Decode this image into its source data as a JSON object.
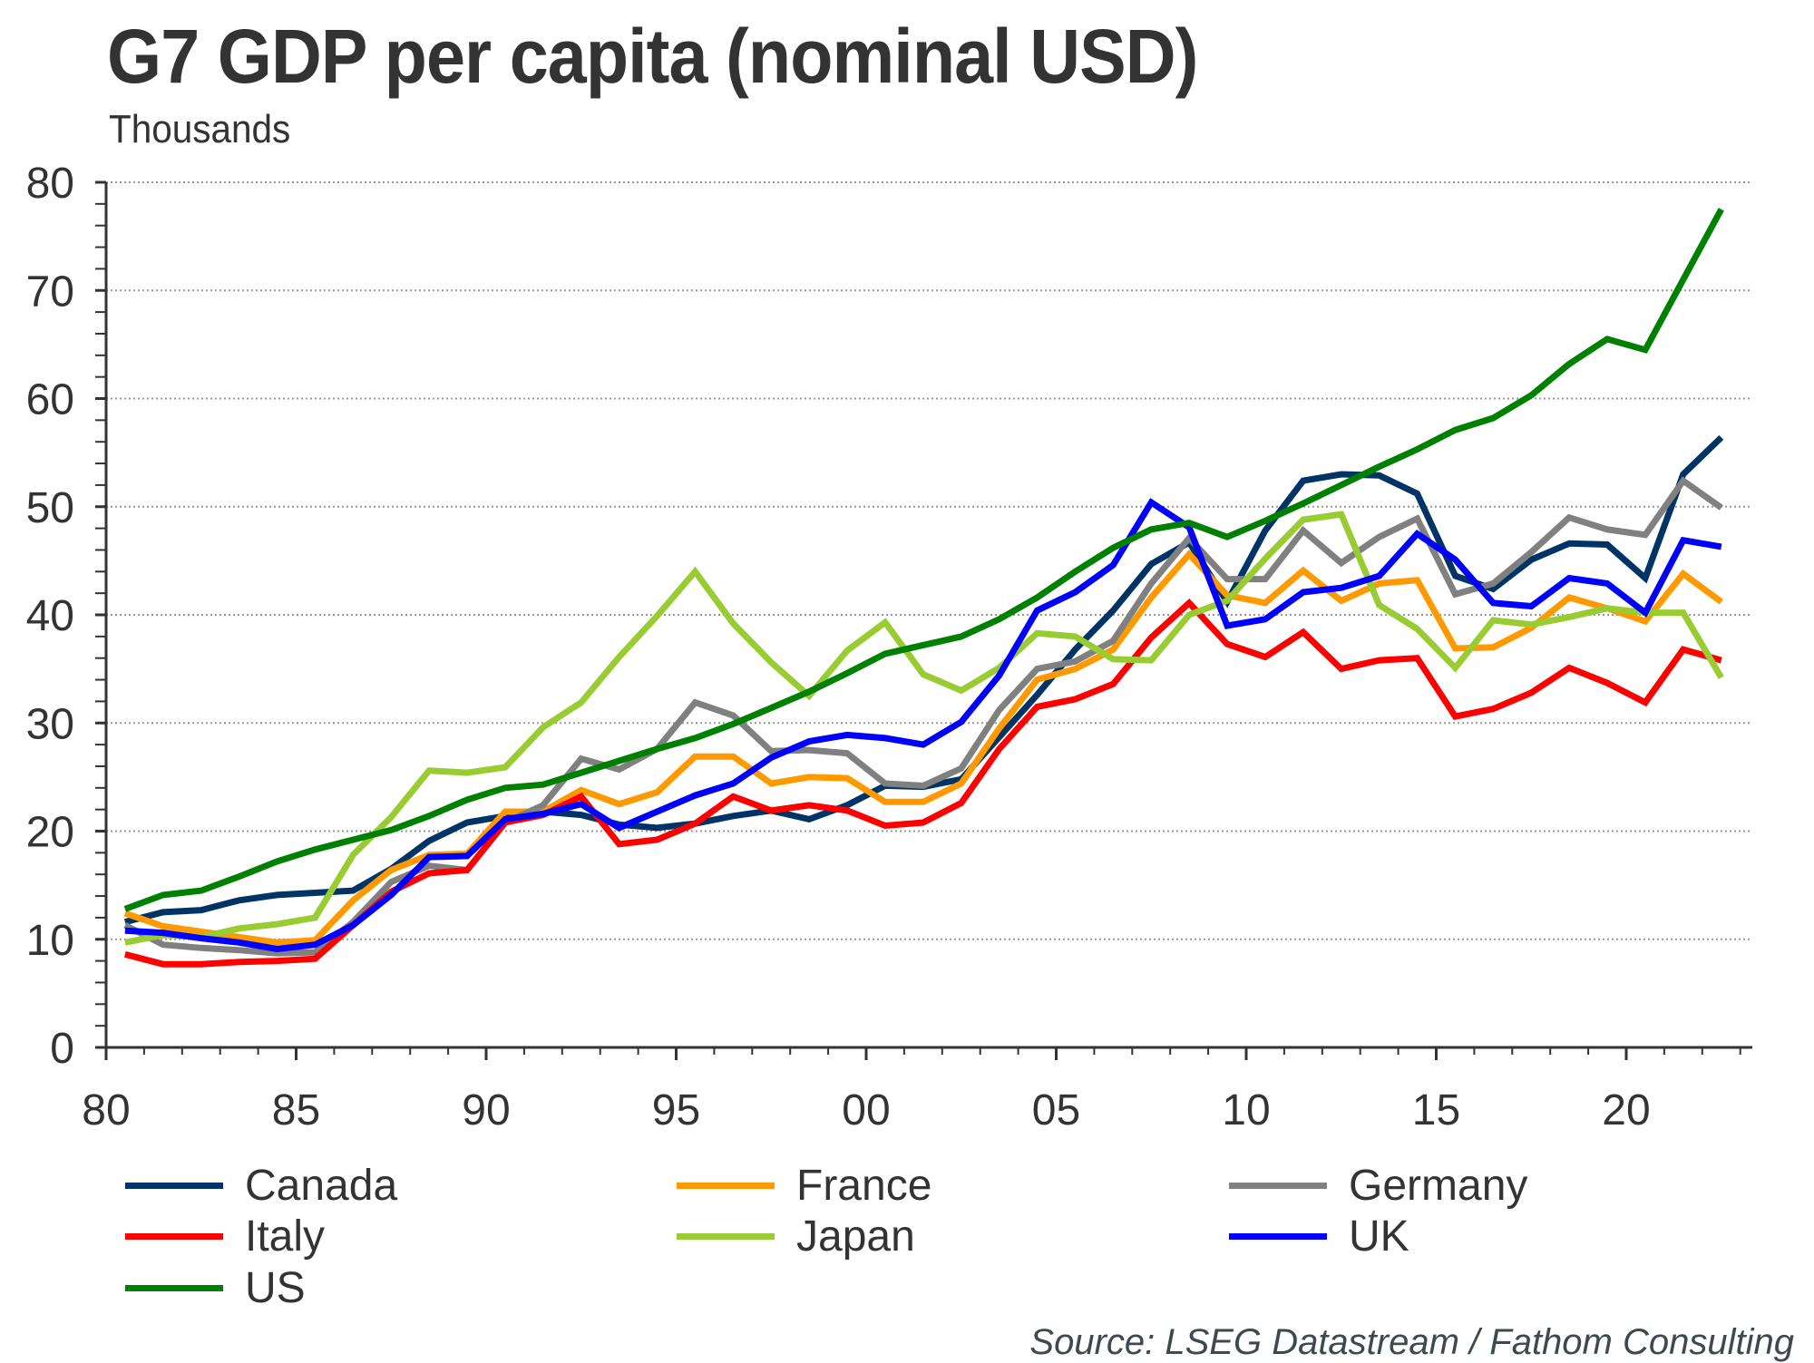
{
  "title": "G7 GDP per capita (nominal USD)",
  "subtitle": "Thousands",
  "source": "Source: LSEG Datastream / Fathom Consulting",
  "chart_data": {
    "type": "line",
    "title": "G7 GDP per capita (nominal USD)",
    "ylabel": "Thousands",
    "xlabel": "",
    "xlim": [
      1980,
      2023.6
    ],
    "ylim": [
      0,
      80
    ],
    "yticks": [
      0,
      10,
      20,
      30,
      40,
      50,
      60,
      70,
      80
    ],
    "ytick_labels": [
      "0",
      "10",
      "20",
      "30",
      "40",
      "50",
      "60",
      "70",
      "80"
    ],
    "xticks": [
      1980,
      1985,
      1990,
      1995,
      2000,
      2005,
      2010,
      2015,
      2020
    ],
    "xtick_labels": [
      "80",
      "85",
      "90",
      "95",
      "00",
      "05",
      "10",
      "15",
      "20"
    ],
    "grid": "horizontal dotted",
    "legend_position": "bottom",
    "x": [
      1980,
      1981,
      1982,
      1983,
      1984,
      1985,
      1986,
      1987,
      1988,
      1989,
      1990,
      1991,
      1992,
      1993,
      1994,
      1995,
      1996,
      1997,
      1998,
      1999,
      2000,
      2001,
      2002,
      2003,
      2004,
      2005,
      2006,
      2007,
      2008,
      2009,
      2010,
      2011,
      2012,
      2013,
      2014,
      2015,
      2016,
      2017,
      2018,
      2019,
      2020,
      2021,
      2022
    ],
    "series": [
      {
        "name": "Canada",
        "color": "#003366",
        "values": [
          11.6,
          12.5,
          12.7,
          13.6,
          14.1,
          14.3,
          14.5,
          16.5,
          19.1,
          20.8,
          21.4,
          21.8,
          21.5,
          20.6,
          20.3,
          20.7,
          21.4,
          21.9,
          21.1,
          22.4,
          24.2,
          24.1,
          24.8,
          28.7,
          32.6,
          36.8,
          40.4,
          44.7,
          46.7,
          41.2,
          47.8,
          52.4,
          53.0,
          52.9,
          51.2,
          43.6,
          42.4,
          45.1,
          46.6,
          46.5,
          43.4,
          53.0,
          56.4
        ]
      },
      {
        "name": "France",
        "color": "#ff9900",
        "values": [
          12.4,
          11.2,
          10.7,
          10.2,
          9.7,
          9.9,
          13.6,
          16.4,
          17.8,
          17.9,
          21.8,
          21.8,
          23.8,
          22.5,
          23.6,
          26.9,
          26.9,
          24.4,
          25.0,
          24.9,
          22.7,
          22.7,
          24.4,
          29.5,
          34.0,
          35.0,
          36.8,
          41.6,
          45.6,
          41.8,
          41.1,
          44.1,
          41.3,
          42.9,
          43.2,
          36.9,
          37.0,
          38.8,
          41.6,
          40.6,
          39.4,
          43.8,
          41.2
        ]
      },
      {
        "name": "Germany",
        "color": "#808080",
        "values": [
          11.3,
          9.5,
          9.2,
          9.0,
          8.7,
          8.8,
          11.6,
          15.3,
          16.8,
          16.4,
          20.8,
          22.4,
          26.7,
          25.7,
          27.6,
          31.9,
          30.7,
          27.4,
          27.5,
          27.2,
          24.4,
          24.2,
          25.8,
          31.2,
          35.0,
          35.7,
          37.6,
          42.9,
          47.1,
          43.3,
          43.3,
          47.8,
          44.8,
          47.2,
          48.9,
          41.9,
          42.9,
          45.8,
          49.0,
          47.9,
          47.4,
          52.4,
          49.9
        ]
      },
      {
        "name": "Italy",
        "color": "#ff0000",
        "values": [
          8.6,
          7.7,
          7.7,
          7.9,
          8.0,
          8.2,
          11.3,
          14.4,
          16.1,
          16.4,
          20.8,
          21.5,
          23.2,
          18.8,
          19.2,
          20.7,
          23.2,
          21.9,
          22.4,
          21.9,
          20.5,
          20.8,
          22.6,
          27.6,
          31.5,
          32.2,
          33.6,
          37.9,
          41.1,
          37.3,
          36.1,
          38.4,
          35.0,
          35.8,
          36.0,
          30.6,
          31.3,
          32.8,
          35.1,
          33.7,
          31.9,
          36.8,
          35.8
        ]
      },
      {
        "name": "Japan",
        "color": "#99cc33",
        "values": [
          9.7,
          10.4,
          10.2,
          11.0,
          11.4,
          12.0,
          17.8,
          21.3,
          25.6,
          25.4,
          25.9,
          29.6,
          31.9,
          36.1,
          39.9,
          44.0,
          39.2,
          35.6,
          32.5,
          36.7,
          39.3,
          34.5,
          33.0,
          35.1,
          38.3,
          38.0,
          35.9,
          35.8,
          40.0,
          41.3,
          45.2,
          48.8,
          49.3,
          40.9,
          38.7,
          35.1,
          39.5,
          39.1,
          39.8,
          40.6,
          40.2,
          40.2,
          34.2
        ]
      },
      {
        "name": "UK",
        "color": "#0000ff",
        "values": [
          10.8,
          10.6,
          10.1,
          9.7,
          9.1,
          9.5,
          11.3,
          14.1,
          17.6,
          17.7,
          21.1,
          21.6,
          22.5,
          20.3,
          21.8,
          23.3,
          24.4,
          26.8,
          28.3,
          28.9,
          28.6,
          28.0,
          30.1,
          34.4,
          40.4,
          42.1,
          44.6,
          50.4,
          48.1,
          39.0,
          39.6,
          42.1,
          42.5,
          43.6,
          47.5,
          45.1,
          41.1,
          40.8,
          43.4,
          42.9,
          40.2,
          46.9,
          46.3
        ]
      },
      {
        "name": "US",
        "color": "#008000",
        "values": [
          12.8,
          14.1,
          14.5,
          15.8,
          17.2,
          18.3,
          19.2,
          20.1,
          21.4,
          22.9,
          24.0,
          24.3,
          25.4,
          26.5,
          27.6,
          28.6,
          29.9,
          31.4,
          32.9,
          34.6,
          36.4,
          37.2,
          38.0,
          39.6,
          41.6,
          44.0,
          46.2,
          47.9,
          48.5,
          47.2,
          48.7,
          50.3,
          52.0,
          53.7,
          55.3,
          57.1,
          58.2,
          60.3,
          63.2,
          65.5,
          64.5,
          71.0,
          77.5
        ]
      }
    ]
  },
  "legend": [
    {
      "label": "Canada",
      "color": "#003366"
    },
    {
      "label": "France",
      "color": "#ff9900"
    },
    {
      "label": "Germany",
      "color": "#808080"
    },
    {
      "label": "Italy",
      "color": "#ff0000"
    },
    {
      "label": "Japan",
      "color": "#99cc33"
    },
    {
      "label": "UK",
      "color": "#0000ff"
    },
    {
      "label": "US",
      "color": "#008000"
    }
  ]
}
